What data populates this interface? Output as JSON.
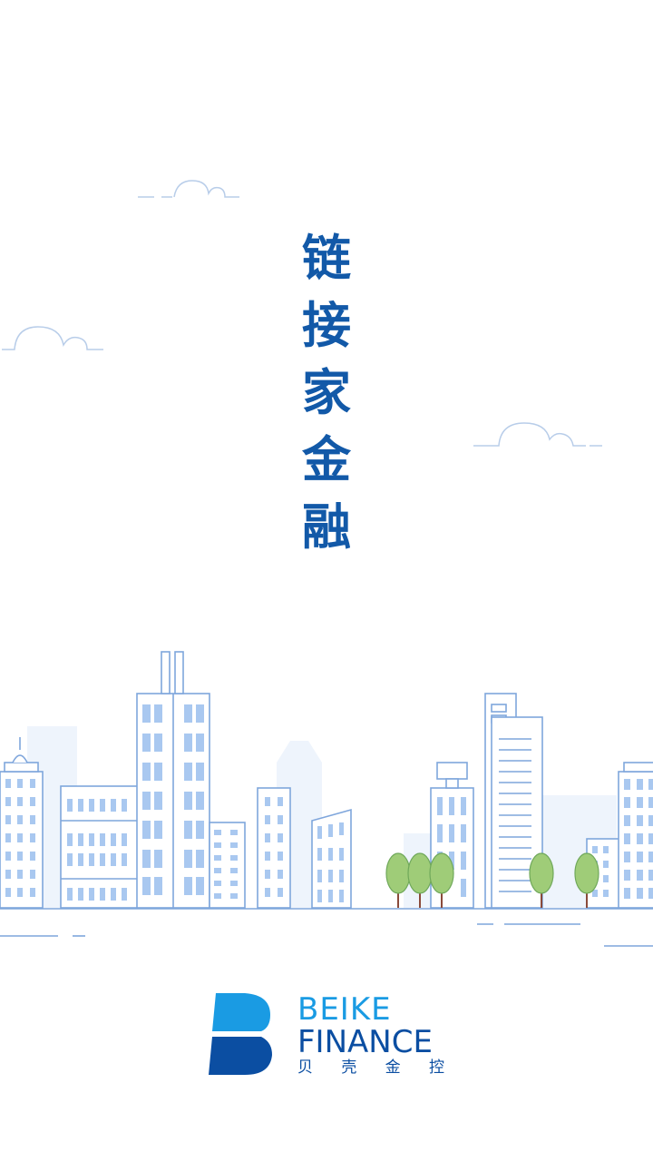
{
  "slogan": {
    "chars": [
      "链",
      "接",
      "家",
      "金",
      "融"
    ]
  },
  "brand": {
    "line1": "BEIKE",
    "line2": "FINANCE",
    "cn_chars": [
      "贝",
      "壳",
      "金",
      "控"
    ],
    "colors": {
      "primary_light": "#1a9be3",
      "primary_dark": "#0b4ea2",
      "slogan": "#1259a8",
      "illustration_stroke": "#7fa6dc",
      "illustration_fill": "#eef4fc",
      "tree": "#9fcc78"
    }
  },
  "illustration": {
    "name": "city-skyline-with-clouds"
  }
}
